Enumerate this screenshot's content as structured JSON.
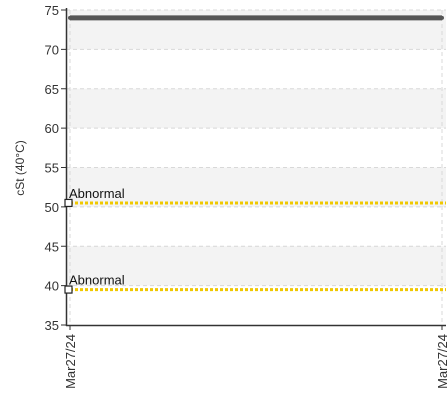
{
  "chart_data": {
    "type": "line",
    "title": "",
    "xlabel": "",
    "ylabel": "cSt (40°C)",
    "ylim": [
      35,
      75
    ],
    "yticks": [
      35,
      40,
      45,
      50,
      55,
      60,
      65,
      70,
      75
    ],
    "x": [
      "Mar27/24",
      "Mar27/24"
    ],
    "grid": true,
    "series": [
      {
        "values": [
          74,
          74
        ],
        "color": "#555555"
      }
    ],
    "reference_lines": [
      {
        "label": "Abnormal",
        "value": 50.5,
        "color": "#f0c800"
      },
      {
        "label": "Abnormal",
        "value": 39.5,
        "color": "#f0c800"
      }
    ],
    "bands": {
      "color": "#f3f3f3"
    }
  }
}
